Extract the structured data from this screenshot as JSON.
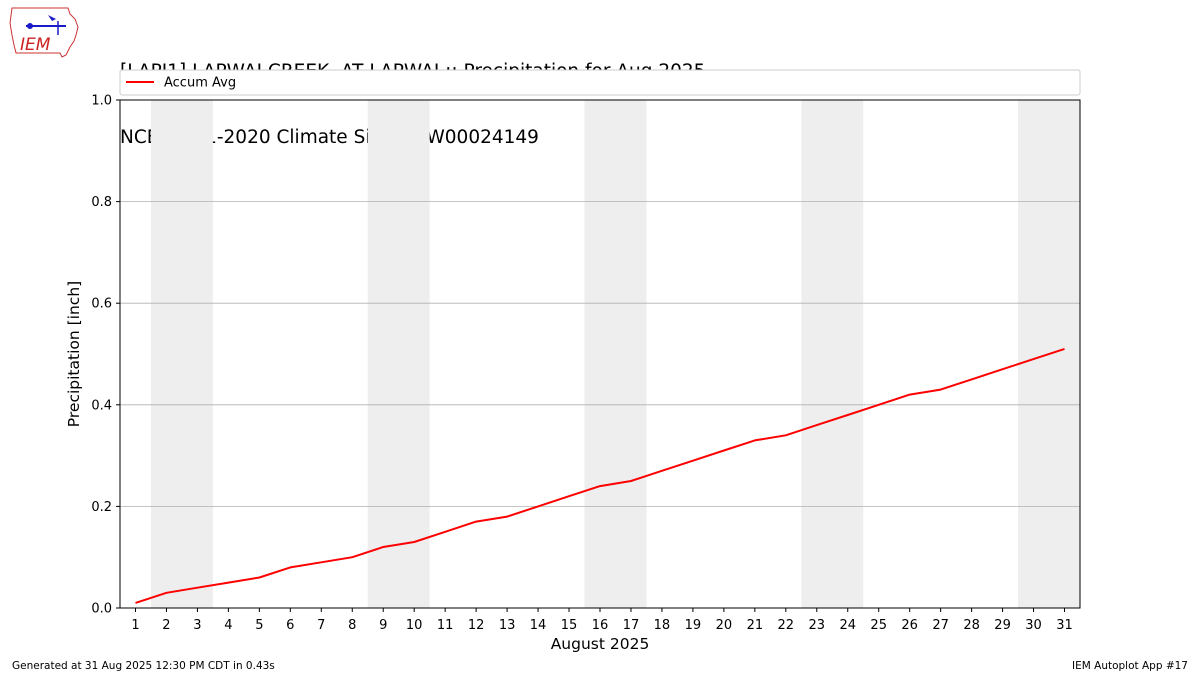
{
  "header": {
    "title_line1": "[LAPI1] LAPWAI CREEK  AT LAPWAI :: Precipitation for Aug 2025",
    "title_line2": "NCEI 1991-2020 Climate Site: USW00024149",
    "logo_text": "IEM"
  },
  "footer": {
    "generated": "Generated at 31 Aug 2025 12:30 PM CDT in 0.43s",
    "app": "IEM Autoplot App #17"
  },
  "colors": {
    "line": "#ff0000",
    "weekend_band": "#eeeeee",
    "grid": "#b0b0b0"
  },
  "chart_data": {
    "type": "line",
    "xlabel": "August 2025",
    "ylabel": "Precipitation [inch]",
    "xlim": [
      0.5,
      31.5
    ],
    "ylim": [
      0.0,
      1.0
    ],
    "yticks": [
      "0.0",
      "0.2",
      "0.4",
      "0.6",
      "0.8",
      "1.0"
    ],
    "ytick_values": [
      0.0,
      0.2,
      0.4,
      0.6,
      0.8,
      1.0
    ],
    "x": [
      1,
      2,
      3,
      4,
      5,
      6,
      7,
      8,
      9,
      10,
      11,
      12,
      13,
      14,
      15,
      16,
      17,
      18,
      19,
      20,
      21,
      22,
      23,
      24,
      25,
      26,
      27,
      28,
      29,
      30,
      31
    ],
    "xtick_labels": [
      "1",
      "2",
      "3",
      "4",
      "5",
      "6",
      "7",
      "8",
      "9",
      "10",
      "11",
      "12",
      "13",
      "14",
      "15",
      "16",
      "17",
      "18",
      "19",
      "20",
      "21",
      "22",
      "23",
      "24",
      "25",
      "26",
      "27",
      "28",
      "29",
      "30",
      "31"
    ],
    "weekend_bands": [
      [
        2,
        3
      ],
      [
        9,
        10
      ],
      [
        16,
        17
      ],
      [
        23,
        24
      ],
      [
        30,
        31
      ]
    ],
    "grid": "y",
    "legend_position": "top",
    "series": [
      {
        "name": "Accum Avg",
        "values": [
          0.01,
          0.03,
          0.04,
          0.05,
          0.06,
          0.08,
          0.09,
          0.1,
          0.12,
          0.13,
          0.15,
          0.17,
          0.18,
          0.2,
          0.22,
          0.24,
          0.25,
          0.27,
          0.29,
          0.31,
          0.33,
          0.34,
          0.36,
          0.38,
          0.4,
          0.42,
          0.43,
          0.45,
          0.47,
          0.49,
          0.51
        ]
      }
    ]
  }
}
